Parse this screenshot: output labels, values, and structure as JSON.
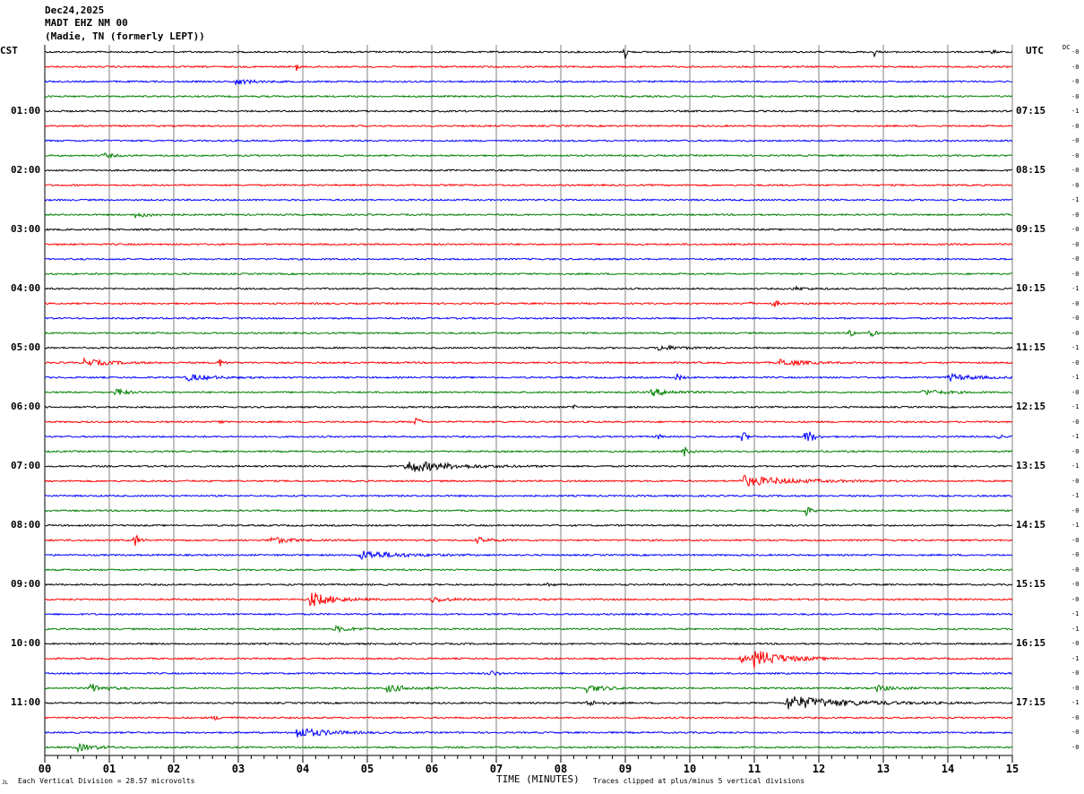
{
  "header": {
    "date": "Dec24,2025",
    "station": "MADT EHZ NM 00",
    "location": "(Madie, TN (formerly LEPT))"
  },
  "left_tz": "CST",
  "right_tz": "UTC",
  "dc_label": "DC",
  "footer": {
    "scale_text": "Each Vertical Division =   28.57 microvolts",
    "xlabel": "TIME (MINUTES)",
    "clip_text": "Traces clipped at plus/minus 5 vertical divisions",
    "corner_mark": "JL"
  },
  "chart_data": {
    "type": "line",
    "title": "MADT EHZ NM 00 helicorder",
    "xlabel": "TIME (MINUTES)",
    "xlim": [
      0,
      15
    ],
    "x_ticks": [
      "00",
      "01",
      "02",
      "03",
      "04",
      "05",
      "06",
      "07",
      "08",
      "09",
      "10",
      "11",
      "12",
      "13",
      "14",
      "15"
    ],
    "rows": 48,
    "row_colors": [
      "#000000",
      "#ff0000",
      "#0000ff",
      "#008000"
    ],
    "left_labels": [
      {
        "row": 4,
        "text": "01:00"
      },
      {
        "row": 8,
        "text": "02:00"
      },
      {
        "row": 12,
        "text": "03:00"
      },
      {
        "row": 16,
        "text": "04:00"
      },
      {
        "row": 20,
        "text": "05:00"
      },
      {
        "row": 24,
        "text": "06:00"
      },
      {
        "row": 28,
        "text": "07:00"
      },
      {
        "row": 32,
        "text": "08:00"
      },
      {
        "row": 36,
        "text": "09:00"
      },
      {
        "row": 40,
        "text": "10:00"
      },
      {
        "row": 44,
        "text": "11:00"
      }
    ],
    "right_labels": [
      {
        "row": 4,
        "text": "07:15"
      },
      {
        "row": 8,
        "text": "08:15"
      },
      {
        "row": 12,
        "text": "09:15"
      },
      {
        "row": 16,
        "text": "10:15"
      },
      {
        "row": 20,
        "text": "11:15"
      },
      {
        "row": 24,
        "text": "12:15"
      },
      {
        "row": 28,
        "text": "13:15"
      },
      {
        "row": 32,
        "text": "14:15"
      },
      {
        "row": 36,
        "text": "15:15"
      },
      {
        "row": 40,
        "text": "16:15"
      },
      {
        "row": 44,
        "text": "17:15"
      }
    ],
    "dc_offsets": [
      "-0",
      "-0",
      "-0",
      "-0",
      "-1",
      "-0",
      "-0",
      "-0",
      "-0",
      "-0",
      "-1",
      "-0",
      "-0",
      "-0",
      "-0",
      "-0",
      "-1",
      "-0",
      "-0",
      "-0",
      "-1",
      "-0",
      "-1",
      "-0",
      "-1",
      "-0",
      "-1",
      "-0",
      "-1",
      "-0",
      "-1",
      "-0",
      "-1",
      "-0",
      "-0",
      "-0",
      "-0",
      "-0",
      "-1",
      "-1",
      "-0",
      "-1",
      "-0",
      "-0",
      "-1",
      "-0",
      "-0",
      "-0"
    ],
    "events": [
      {
        "row": 0,
        "minute": 9.0,
        "amp": 8,
        "dur": 0.05
      },
      {
        "row": 0,
        "minute": 12.85,
        "amp": 6,
        "dur": 0.05
      },
      {
        "row": 0,
        "minute": 14.7,
        "amp": 4,
        "dur": 0.05
      },
      {
        "row": 1,
        "minute": 3.9,
        "amp": 4,
        "dur": 0.05
      },
      {
        "row": 2,
        "minute": 2.95,
        "amp": 3,
        "dur": 0.5
      },
      {
        "row": 7,
        "minute": 0.9,
        "amp": 2.5,
        "dur": 0.3
      },
      {
        "row": 11,
        "minute": 1.4,
        "amp": 2.5,
        "dur": 0.5
      },
      {
        "row": 16,
        "minute": 11.6,
        "amp": 2,
        "dur": 0.4
      },
      {
        "row": 17,
        "minute": 10.9,
        "amp": 4,
        "dur": 0.05
      },
      {
        "row": 17,
        "minute": 11.3,
        "amp": 5,
        "dur": 0.1
      },
      {
        "row": 19,
        "minute": 12.5,
        "amp": 7,
        "dur": 0.05
      },
      {
        "row": 19,
        "minute": 12.8,
        "amp": 5,
        "dur": 0.1
      },
      {
        "row": 20,
        "minute": 9.5,
        "amp": 3,
        "dur": 0.6
      },
      {
        "row": 21,
        "minute": 0.6,
        "amp": 4,
        "dur": 0.7
      },
      {
        "row": 21,
        "minute": 2.7,
        "amp": 5,
        "dur": 0.1
      },
      {
        "row": 21,
        "minute": 11.4,
        "amp": 4,
        "dur": 0.6
      },
      {
        "row": 22,
        "minute": 2.2,
        "amp": 4,
        "dur": 0.6
      },
      {
        "row": 22,
        "minute": 9.8,
        "amp": 5,
        "dur": 0.1
      },
      {
        "row": 22,
        "minute": 14.0,
        "amp": 4,
        "dur": 0.7
      },
      {
        "row": 23,
        "minute": 1.1,
        "amp": 6,
        "dur": 0.2
      },
      {
        "row": 23,
        "minute": 9.4,
        "amp": 4,
        "dur": 0.6
      },
      {
        "row": 23,
        "minute": 13.6,
        "amp": 3,
        "dur": 0.6
      },
      {
        "row": 24,
        "minute": 8.2,
        "amp": 4,
        "dur": 0.05
      },
      {
        "row": 25,
        "minute": 5.75,
        "amp": 6,
        "dur": 0.1
      },
      {
        "row": 25,
        "minute": 2.7,
        "amp": 3,
        "dur": 0.05
      },
      {
        "row": 26,
        "minute": 9.5,
        "amp": 5,
        "dur": 0.05
      },
      {
        "row": 26,
        "minute": 10.8,
        "amp": 9,
        "dur": 0.1
      },
      {
        "row": 26,
        "minute": 11.8,
        "amp": 12,
        "dur": 0.15
      },
      {
        "row": 26,
        "minute": 14.8,
        "amp": 4,
        "dur": 0.05
      },
      {
        "row": 27,
        "minute": 9.9,
        "amp": 7,
        "dur": 0.1
      },
      {
        "row": 28,
        "minute": 5.6,
        "amp": 7,
        "dur": 1.2
      },
      {
        "row": 29,
        "minute": 10.8,
        "amp": 6,
        "dur": 1.3
      },
      {
        "row": 31,
        "minute": 11.8,
        "amp": 7,
        "dur": 0.1
      },
      {
        "row": 33,
        "minute": 1.4,
        "amp": 8,
        "dur": 0.1
      },
      {
        "row": 33,
        "minute": 3.5,
        "amp": 4,
        "dur": 0.5
      },
      {
        "row": 33,
        "minute": 6.7,
        "amp": 3,
        "dur": 0.4
      },
      {
        "row": 34,
        "minute": 4.9,
        "amp": 5,
        "dur": 1.0
      },
      {
        "row": 36,
        "minute": 7.8,
        "amp": 3,
        "dur": 0.1
      },
      {
        "row": 37,
        "minute": 4.1,
        "amp": 9,
        "dur": 0.6
      },
      {
        "row": 37,
        "minute": 6.0,
        "amp": 3,
        "dur": 0.5
      },
      {
        "row": 39,
        "minute": 4.5,
        "amp": 3,
        "dur": 0.5
      },
      {
        "row": 41,
        "minute": 11.0,
        "amp": 10,
        "dur": 0.8
      },
      {
        "row": 41,
        "minute": 10.8,
        "amp": 6,
        "dur": 0.1
      },
      {
        "row": 42,
        "minute": 6.9,
        "amp": 3,
        "dur": 0.2
      },
      {
        "row": 43,
        "minute": 0.7,
        "amp": 5,
        "dur": 0.4
      },
      {
        "row": 43,
        "minute": 5.3,
        "amp": 4,
        "dur": 0.6
      },
      {
        "row": 43,
        "minute": 8.4,
        "amp": 4,
        "dur": 0.5
      },
      {
        "row": 43,
        "minute": 12.9,
        "amp": 3,
        "dur": 0.5
      },
      {
        "row": 44,
        "minute": 11.5,
        "amp": 8,
        "dur": 1.6
      },
      {
        "row": 44,
        "minute": 8.4,
        "amp": 3,
        "dur": 0.4
      },
      {
        "row": 45,
        "minute": 2.6,
        "amp": 2,
        "dur": 0.3
      },
      {
        "row": 46,
        "minute": 3.9,
        "amp": 6,
        "dur": 0.8
      },
      {
        "row": 47,
        "minute": 0.5,
        "amp": 4,
        "dur": 0.5
      }
    ]
  }
}
